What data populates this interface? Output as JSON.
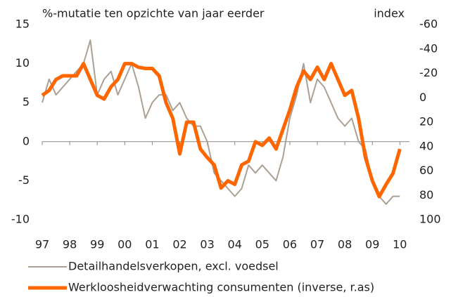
{
  "chart_data": {
    "type": "line",
    "ylabel": "%-mutatie ten opzichte van jaar eerder",
    "y2label": "index",
    "x": [
      1997.0,
      1997.25,
      1997.5,
      1997.75,
      1998.0,
      1998.25,
      1998.5,
      1998.75,
      1999.0,
      1999.25,
      1999.5,
      1999.75,
      2000.0,
      2000.25,
      2000.5,
      2000.75,
      2001.0,
      2001.25,
      2001.5,
      2001.75,
      2002.0,
      2002.25,
      2002.5,
      2002.75,
      2003.0,
      2003.25,
      2003.5,
      2003.75,
      2004.0,
      2004.25,
      2004.5,
      2004.75,
      2005.0,
      2005.25,
      2005.5,
      2005.75,
      2006.0,
      2006.25,
      2006.5,
      2006.75,
      2007.0,
      2007.25,
      2007.5,
      2007.75,
      2008.0,
      2008.25,
      2008.5,
      2008.75,
      2009.0,
      2009.25,
      2009.5,
      2009.75,
      2010.0
    ],
    "series": [
      {
        "name": "Detailhandelsverkopen, excl. voedsel",
        "color": "#aaa096",
        "width": 2,
        "values": [
          5,
          8,
          6,
          7,
          8,
          9,
          10,
          13,
          6,
          8,
          9,
          6,
          8,
          10,
          7,
          3,
          5,
          6,
          6,
          4,
          5,
          3,
          2,
          2,
          0,
          -4,
          -5,
          -6,
          -7,
          -6,
          -3,
          -4,
          -3,
          -4,
          -5,
          -2,
          3,
          6,
          10,
          5,
          8,
          7,
          5,
          3,
          2,
          3,
          0,
          -1,
          -5,
          -7,
          -8,
          -7,
          -7
        ]
      },
      {
        "name": "Werkloosheidverwachting consumenten (inverse, r.as)",
        "color": "#ff6600",
        "width": 5,
        "axis": "y2",
        "values": [
          -2,
          -6,
          -15,
          -18,
          -18,
          -18,
          -28,
          -15,
          -2,
          1,
          -9,
          -15,
          -28,
          -28,
          -25,
          -24,
          -24,
          -18,
          4,
          17,
          46,
          20,
          20,
          42,
          49,
          55,
          74,
          68,
          71,
          55,
          52,
          36,
          39,
          33,
          42,
          26,
          10,
          -9,
          -22,
          -15,
          -25,
          -15,
          -28,
          -15,
          -2,
          -6,
          17,
          49,
          68,
          81,
          71,
          62,
          42
        ]
      }
    ],
    "xlim": [
      1997,
      2010.35
    ],
    "xticks": [
      {
        "value": 1997,
        "label": "97"
      },
      {
        "value": 1998,
        "label": "98"
      },
      {
        "value": 1999,
        "label": "99"
      },
      {
        "value": 2000,
        "label": "00"
      },
      {
        "value": 2001,
        "label": "01"
      },
      {
        "value": 2002,
        "label": "02"
      },
      {
        "value": 2003,
        "label": "03"
      },
      {
        "value": 2004,
        "label": "04"
      },
      {
        "value": 2005,
        "label": "05"
      },
      {
        "value": 2006,
        "label": "06"
      },
      {
        "value": 2007,
        "label": "07"
      },
      {
        "value": 2008,
        "label": "08"
      },
      {
        "value": 2009,
        "label": "09"
      },
      {
        "value": 2010,
        "label": "10"
      }
    ],
    "ylim": [
      -10,
      15
    ],
    "yticks": [
      -10,
      -5,
      0,
      5,
      10,
      15
    ],
    "y2lim": [
      100,
      -60
    ],
    "y2ticks": [
      -60,
      -40,
      -20,
      0,
      20,
      40,
      60,
      80,
      100
    ]
  }
}
